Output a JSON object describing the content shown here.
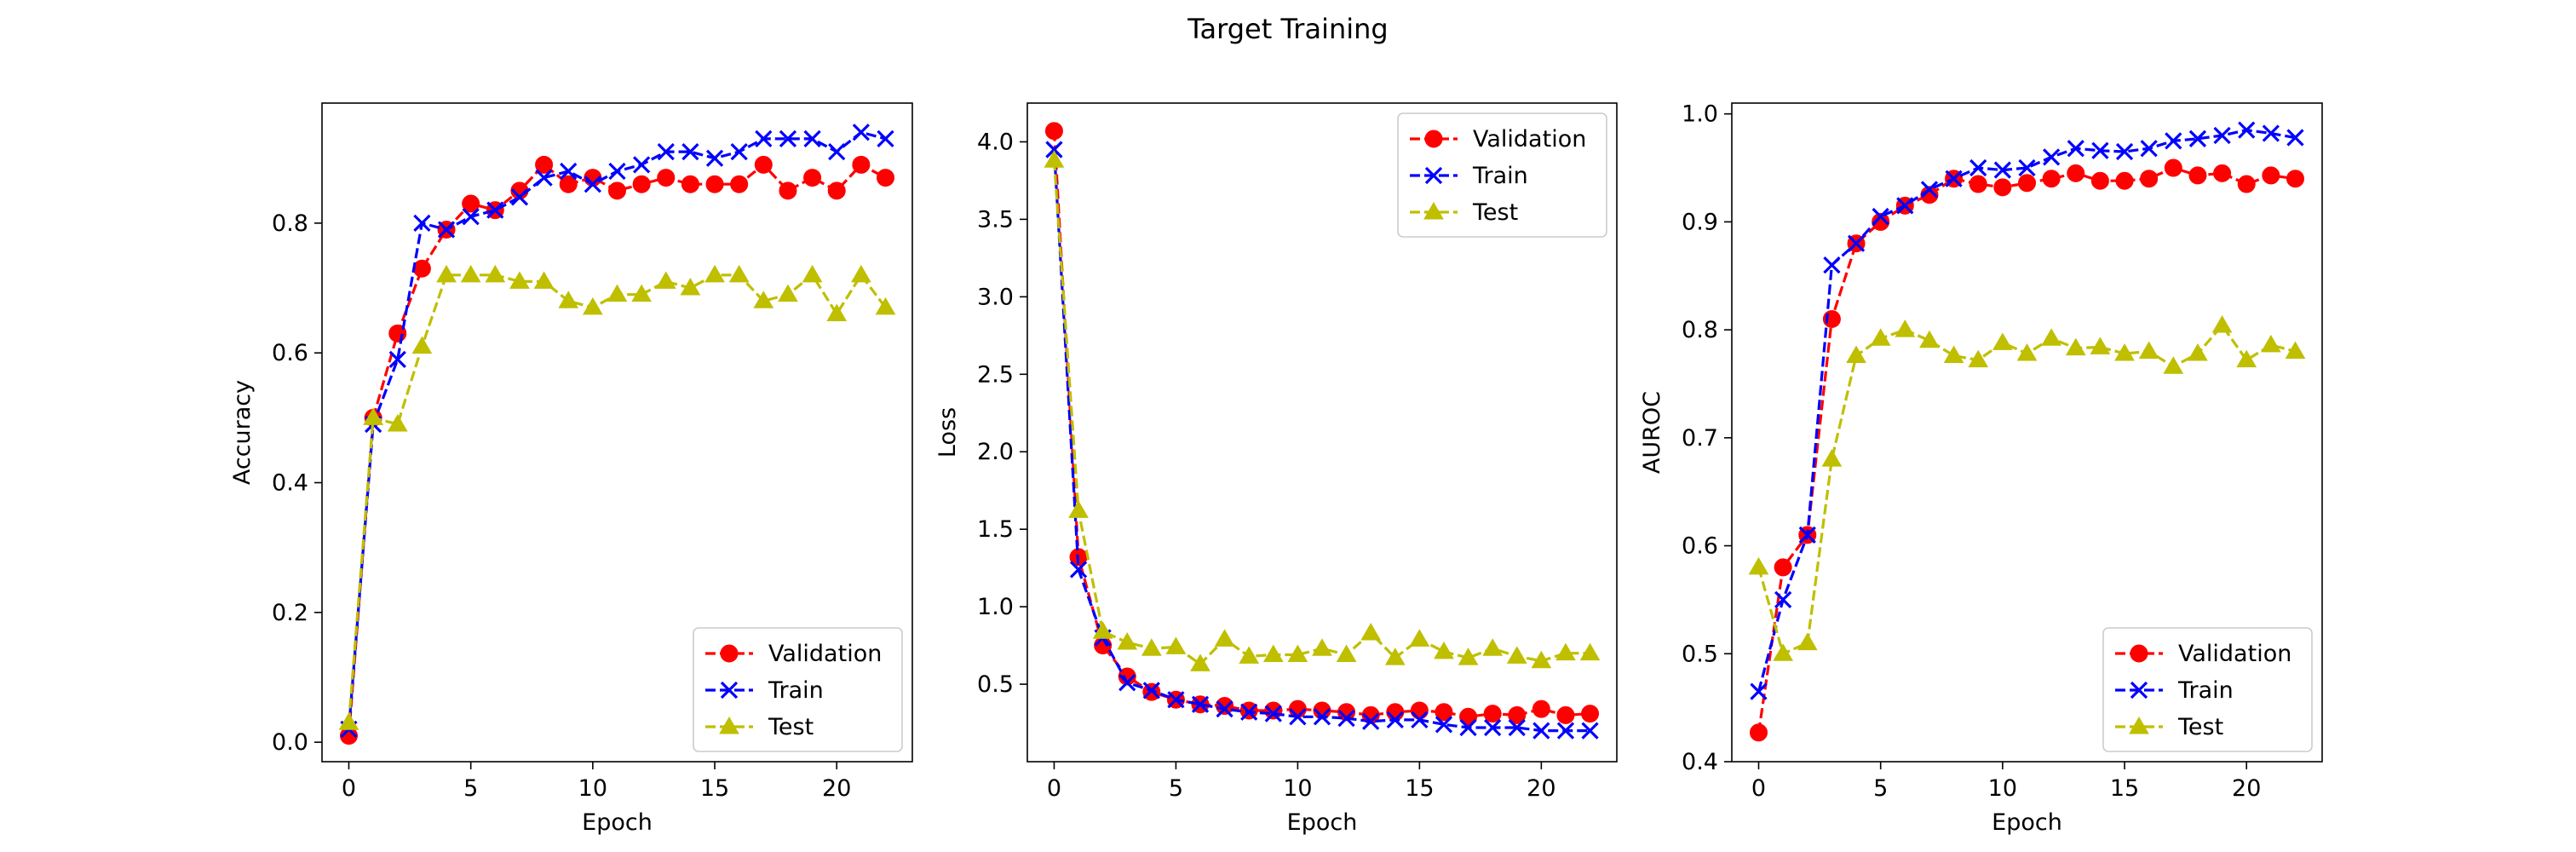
{
  "figure": {
    "title": "Target Training"
  },
  "chart_data": [
    {
      "type": "line",
      "title": "",
      "xlabel": "Epoch",
      "ylabel": "Accuracy",
      "xlim": [
        -1.1,
        23.1
      ],
      "ylim": [
        -0.03,
        0.985
      ],
      "xticks": [
        0,
        5,
        10,
        15,
        20
      ],
      "yticks": [
        0.0,
        0.2,
        0.4,
        0.6,
        0.8
      ],
      "ytick_decimals": 1,
      "legend": "bottom-right",
      "grid": false,
      "x": [
        0,
        1,
        2,
        3,
        4,
        5,
        6,
        7,
        8,
        9,
        10,
        11,
        12,
        13,
        14,
        15,
        16,
        17,
        18,
        19,
        20,
        21,
        22
      ],
      "series": [
        {
          "name": "Validation",
          "color": "#ff0000",
          "marker": "circle",
          "values": [
            0.01,
            0.5,
            0.63,
            0.73,
            0.79,
            0.83,
            0.82,
            0.85,
            0.89,
            0.86,
            0.87,
            0.85,
            0.86,
            0.87,
            0.86,
            0.86,
            0.86,
            0.89,
            0.85,
            0.87,
            0.85,
            0.89,
            0.87
          ]
        },
        {
          "name": "Train",
          "color": "#0000ff",
          "marker": "x",
          "values": [
            0.02,
            0.49,
            0.59,
            0.8,
            0.79,
            0.81,
            0.82,
            0.84,
            0.87,
            0.88,
            0.86,
            0.88,
            0.89,
            0.91,
            0.91,
            0.9,
            0.91,
            0.93,
            0.93,
            0.93,
            0.91,
            0.94,
            0.93
          ]
        },
        {
          "name": "Test",
          "color": "#bfbf00",
          "marker": "triangle",
          "values": [
            0.03,
            0.5,
            0.49,
            0.61,
            0.72,
            0.72,
            0.72,
            0.71,
            0.71,
            0.68,
            0.67,
            0.69,
            0.69,
            0.71,
            0.7,
            0.72,
            0.72,
            0.68,
            0.69,
            0.72,
            0.66,
            0.72,
            0.67
          ]
        }
      ]
    },
    {
      "type": "line",
      "title": "",
      "xlabel": "Epoch",
      "ylabel": "Loss",
      "xlim": [
        -1.1,
        23.1
      ],
      "ylim": [
        0.0,
        4.25
      ],
      "xticks": [
        0,
        5,
        10,
        15,
        20
      ],
      "yticks": [
        0.5,
        1.0,
        1.5,
        2.0,
        2.5,
        3.0,
        3.5,
        4.0
      ],
      "ytick_decimals": 1,
      "legend": "top-right",
      "grid": false,
      "x": [
        0,
        1,
        2,
        3,
        4,
        5,
        6,
        7,
        8,
        9,
        10,
        11,
        12,
        13,
        14,
        15,
        16,
        17,
        18,
        19,
        20,
        21,
        22
      ],
      "series": [
        {
          "name": "Validation",
          "color": "#ff0000",
          "marker": "circle",
          "values": [
            4.07,
            1.32,
            0.75,
            0.55,
            0.45,
            0.4,
            0.37,
            0.36,
            0.33,
            0.33,
            0.34,
            0.33,
            0.32,
            0.3,
            0.32,
            0.33,
            0.32,
            0.29,
            0.31,
            0.3,
            0.34,
            0.3,
            0.31
          ]
        },
        {
          "name": "Train",
          "color": "#0000ff",
          "marker": "x",
          "values": [
            3.95,
            1.24,
            0.8,
            0.51,
            0.46,
            0.4,
            0.37,
            0.34,
            0.32,
            0.31,
            0.29,
            0.29,
            0.28,
            0.26,
            0.27,
            0.27,
            0.24,
            0.22,
            0.22,
            0.22,
            0.2,
            0.2,
            0.2
          ]
        },
        {
          "name": "Test",
          "color": "#bfbf00",
          "marker": "triangle",
          "values": [
            3.88,
            1.62,
            0.84,
            0.77,
            0.73,
            0.74,
            0.63,
            0.79,
            0.68,
            0.69,
            0.69,
            0.73,
            0.69,
            0.83,
            0.67,
            0.79,
            0.71,
            0.67,
            0.73,
            0.68,
            0.65,
            0.7,
            0.7
          ]
        }
      ]
    },
    {
      "type": "line",
      "title": "",
      "xlabel": "Epoch",
      "ylabel": "AUROC",
      "xlim": [
        -1.1,
        23.1
      ],
      "ylim": [
        0.4,
        1.01
      ],
      "xticks": [
        0,
        5,
        10,
        15,
        20
      ],
      "yticks": [
        0.4,
        0.5,
        0.6,
        0.7,
        0.8,
        0.9,
        1.0
      ],
      "ytick_decimals": 1,
      "legend": "bottom-right",
      "grid": false,
      "x": [
        0,
        1,
        2,
        3,
        4,
        5,
        6,
        7,
        8,
        9,
        10,
        11,
        12,
        13,
        14,
        15,
        16,
        17,
        18,
        19,
        20,
        21,
        22
      ],
      "series": [
        {
          "name": "Validation",
          "color": "#ff0000",
          "marker": "circle",
          "values": [
            0.427,
            0.58,
            0.61,
            0.81,
            0.88,
            0.9,
            0.915,
            0.925,
            0.94,
            0.935,
            0.932,
            0.936,
            0.94,
            0.945,
            0.938,
            0.938,
            0.94,
            0.95,
            0.943,
            0.945,
            0.935,
            0.943,
            0.94
          ]
        },
        {
          "name": "Train",
          "color": "#0000ff",
          "marker": "x",
          "values": [
            0.465,
            0.55,
            0.61,
            0.86,
            0.88,
            0.905,
            0.915,
            0.93,
            0.94,
            0.95,
            0.948,
            0.95,
            0.96,
            0.968,
            0.966,
            0.965,
            0.968,
            0.975,
            0.977,
            0.98,
            0.985,
            0.982,
            0.978
          ]
        },
        {
          "name": "Test",
          "color": "#bfbf00",
          "marker": "triangle",
          "values": [
            0.58,
            0.5,
            0.51,
            0.68,
            0.776,
            0.792,
            0.8,
            0.79,
            0.776,
            0.772,
            0.788,
            0.778,
            0.792,
            0.783,
            0.784,
            0.778,
            0.78,
            0.766,
            0.778,
            0.804,
            0.772,
            0.786,
            0.78
          ]
        }
      ]
    }
  ]
}
